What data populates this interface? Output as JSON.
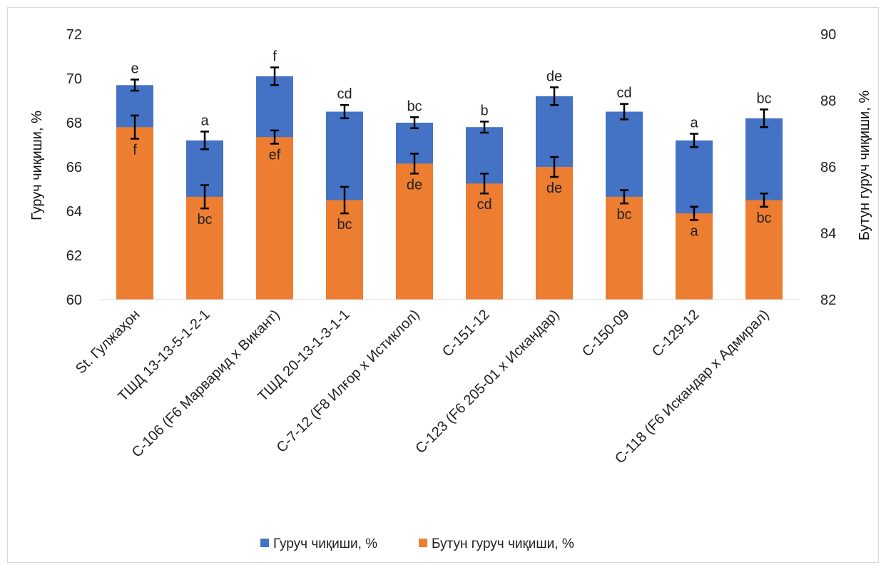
{
  "chart_data": {
    "type": "bar",
    "categories": [
      "St. Гулжаҳон",
      "ТШД 13-13-5-1-2-1",
      "С-106 (F6 Марварид x Викант)",
      "ТШД 20-13-1-3-1-1",
      "С-7-12 (F8 Илғор х Истиклол)",
      "С-151-12",
      "С-123 (F6 205-01 х Искандар)",
      "С-150-09",
      "С-129-12",
      "С-118 (F6 Искандар х Адмирал)"
    ],
    "series": [
      {
        "name": "Гуруч чиқиши, %",
        "axis": "left",
        "color": "#4472C4",
        "values": [
          69.7,
          67.2,
          70.1,
          68.5,
          68.0,
          67.8,
          69.2,
          68.5,
          67.2,
          68.2
        ],
        "errors": [
          0.25,
          0.4,
          0.4,
          0.3,
          0.25,
          0.25,
          0.4,
          0.35,
          0.3,
          0.4
        ],
        "letters": [
          "e",
          "a",
          "f",
          "cd",
          "bc",
          "b",
          "de",
          "cd",
          "a",
          "bc"
        ]
      },
      {
        "name": "Бутун гуруч чиқиши, %",
        "axis": "right",
        "color": "#ED7D31",
        "values": [
          87.2,
          85.1,
          86.9,
          85.0,
          86.1,
          85.5,
          86.0,
          85.1,
          84.6,
          85.0
        ],
        "errors": [
          0.35,
          0.35,
          0.2,
          0.4,
          0.3,
          0.3,
          0.3,
          0.2,
          0.2,
          0.2
        ],
        "letters": [
          "f",
          "bc",
          "ef",
          "bc",
          "de",
          "cd",
          "de",
          "bc",
          "a",
          "bc"
        ]
      }
    ],
    "ylabel": "Гуруч чиқиши, %",
    "ylim": [
      60,
      72
    ],
    "yticks": [
      "60",
      "62",
      "64",
      "66",
      "68",
      "70",
      "72"
    ],
    "y2label": "Бутун гуруч чиқиши, %",
    "y2lim": [
      82,
      90
    ],
    "y2ticks": [
      "82",
      "84",
      "86",
      "88",
      "90"
    ],
    "grid": false,
    "legend_position": "bottom"
  }
}
